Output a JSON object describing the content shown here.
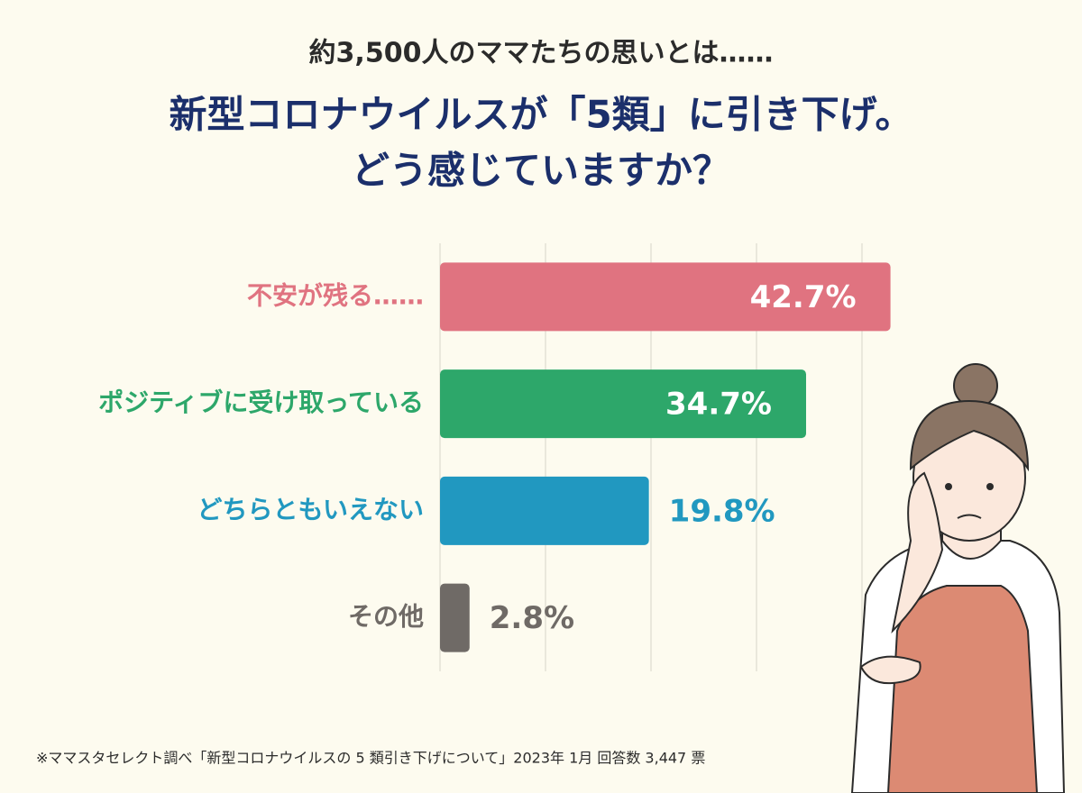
{
  "chart_data": {
    "type": "bar",
    "orientation": "horizontal",
    "subtitle": "約3,500人のママたちの思いとは……",
    "title": [
      "新型コロナウイルスが「5類」に引き下げ。",
      "どう感じていますか？"
    ],
    "categories": [
      "不安が残る……",
      "ポジティブに受け取っている",
      "どちらともいえない",
      "その他"
    ],
    "values": [
      42.7,
      34.7,
      19.8,
      2.8
    ],
    "value_labels": [
      "42.7%",
      "34.7%",
      "19.8%",
      "2.8%"
    ],
    "colors": [
      "#e07380",
      "#2da76a",
      "#2198c0",
      "#6f6a66"
    ],
    "xlim": [
      0,
      45
    ],
    "xticks": [
      0,
      10,
      20,
      30,
      40
    ],
    "grid": true,
    "note": "※ママスタセレクト調べ「新型コロナウイルスの 5 類引き下げについて」2023年 1月  回答数 3,447 票"
  }
}
